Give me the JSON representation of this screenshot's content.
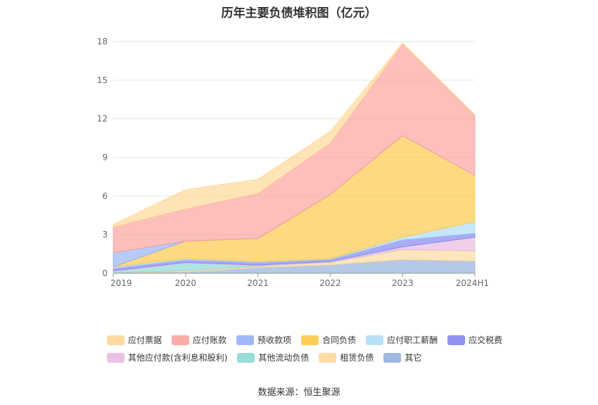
{
  "chart_data": {
    "type": "area",
    "title": "历年主要负债堆积图（亿元）",
    "categories": [
      "2019",
      "2020",
      "2021",
      "2022",
      "2023",
      "2024H1"
    ],
    "ylim": [
      0,
      18
    ],
    "yticks": [
      "0",
      "3",
      "6",
      "9",
      "12",
      "15",
      "18"
    ],
    "stacked": true,
    "grid": true,
    "legend_position": "bottom",
    "series": [
      {
        "name": "其它",
        "color": "#8faadc",
        "values": [
          0.05,
          0.1,
          0.45,
          0.65,
          1.05,
          0.95
        ]
      },
      {
        "name": "租赁负债",
        "color": "#ffd797",
        "values": [
          0.0,
          0.1,
          0.1,
          0.2,
          0.8,
          0.8
        ]
      },
      {
        "name": "其他流动负债",
        "color": "#86d6d2",
        "values": [
          0.1,
          0.6,
          0.05,
          0.02,
          0.0,
          0.0
        ]
      },
      {
        "name": "其他应付款(含利息和股利)",
        "color": "#e9b6dd",
        "values": [
          0.05,
          0.05,
          0.05,
          0.05,
          0.2,
          1.05
        ]
      },
      {
        "name": "应交税费",
        "color": "#7b7ff0",
        "values": [
          0.2,
          0.2,
          0.2,
          0.15,
          0.55,
          0.3
        ]
      },
      {
        "name": "应付职工薪酬",
        "color": "#a9dcf7",
        "values": [
          0.1,
          0.1,
          0.05,
          0.05,
          0.2,
          0.9
        ]
      },
      {
        "name": "合同负债",
        "color": "#ffc53d",
        "values": [
          0.0,
          1.35,
          1.8,
          5.0,
          7.9,
          3.6
        ]
      },
      {
        "name": "预收款项",
        "color": "#8fadfa",
        "values": [
          1.1,
          0.0,
          0.0,
          0.0,
          0.0,
          0.0
        ]
      },
      {
        "name": "应付账款",
        "color": "#fb9d97",
        "values": [
          2.0,
          2.5,
          3.5,
          4.0,
          7.1,
          4.7
        ]
      },
      {
        "name": "应付票据",
        "color": "#ffd591",
        "values": [
          0.2,
          1.5,
          1.1,
          0.9,
          0.1,
          0.0
        ]
      }
    ],
    "legend_order": [
      "应付票据",
      "应付账款",
      "预收款项",
      "合同负债",
      "应付职工薪酬",
      "应交税费",
      "其他应付款(含利息和股利)",
      "其他流动负债",
      "租赁负债",
      "其它"
    ]
  },
  "source": "数据来源：恒生聚源"
}
